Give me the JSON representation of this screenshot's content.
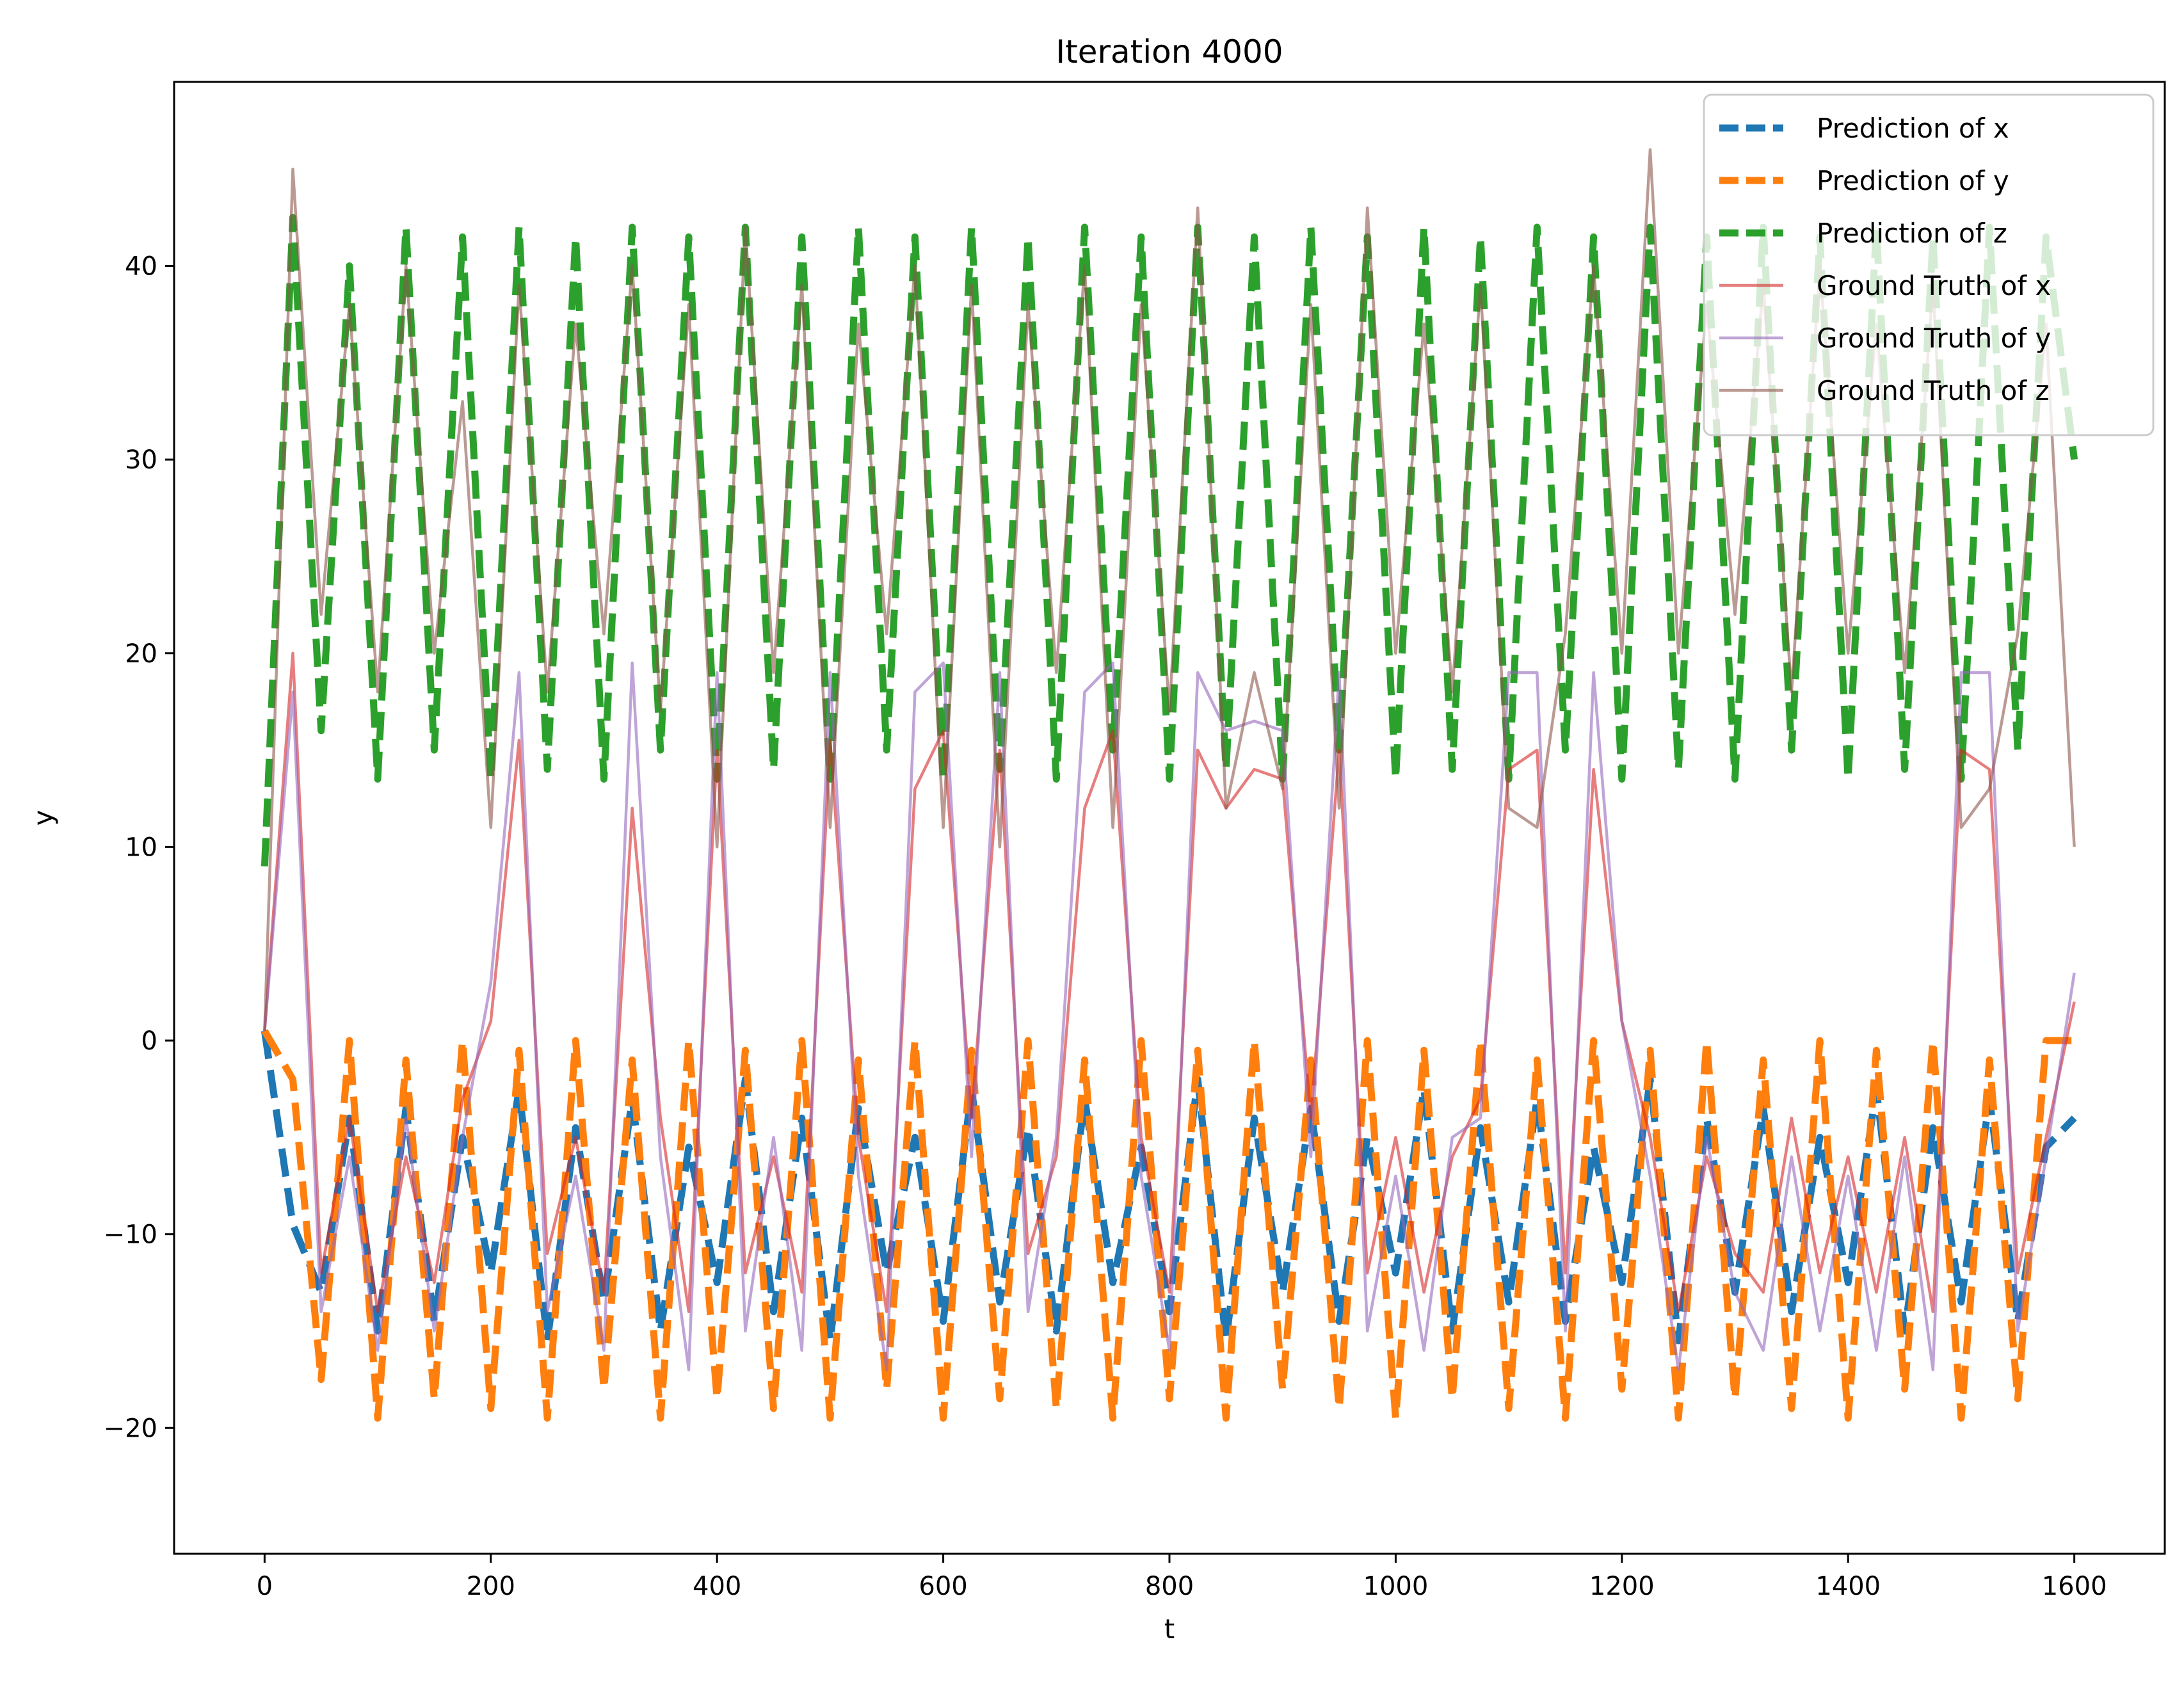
{
  "chart_data": {
    "type": "line",
    "title": "Iteration 4000",
    "xlabel": "t",
    "ylabel": "y",
    "xlim": [
      -80,
      1680
    ],
    "ylim": [
      -26.5,
      49.5
    ],
    "xticks": [
      0,
      200,
      400,
      600,
      800,
      1000,
      1200,
      1400,
      1600
    ],
    "xtick_labels": [
      "0",
      "200",
      "400",
      "600",
      "800",
      "1000",
      "1200",
      "1400",
      "1600"
    ],
    "yticks": [
      -20,
      -10,
      0,
      10,
      20,
      30,
      40
    ],
    "ytick_labels": [
      "−20",
      "−10",
      "0",
      "10",
      "20",
      "30",
      "40"
    ],
    "grid": false,
    "legend_position": "top-right",
    "x": [
      0,
      25,
      50,
      75,
      100,
      125,
      150,
      175,
      200,
      225,
      250,
      275,
      300,
      325,
      350,
      375,
      400,
      425,
      450,
      475,
      500,
      525,
      550,
      575,
      600,
      625,
      650,
      675,
      700,
      725,
      750,
      775,
      800,
      825,
      850,
      875,
      900,
      925,
      950,
      975,
      1000,
      1025,
      1050,
      1075,
      1100,
      1125,
      1150,
      1175,
      1200,
      1225,
      1250,
      1275,
      1300,
      1325,
      1350,
      1375,
      1400,
      1425,
      1450,
      1475,
      1500,
      1525,
      1550,
      1575,
      1600
    ],
    "series": [
      {
        "name": "Prediction of x",
        "style": "dashed",
        "color": "#1f77b4",
        "values": [
          0.5,
          -9.5,
          -13.0,
          -4.0,
          -15.0,
          -3.5,
          -14.5,
          -5.0,
          -12.0,
          -2.5,
          -15.5,
          -4.5,
          -13.5,
          -3.0,
          -15.0,
          -5.5,
          -12.5,
          -2.0,
          -14.0,
          -4.0,
          -15.5,
          -3.5,
          -12.0,
          -5.0,
          -14.5,
          -2.5,
          -13.5,
          -4.5,
          -15.0,
          -3.0,
          -12.5,
          -5.5,
          -14.0,
          -2.0,
          -15.5,
          -4.0,
          -13.0,
          -3.5,
          -14.5,
          -5.0,
          -12.0,
          -2.5,
          -15.0,
          -4.5,
          -13.5,
          -3.0,
          -14.5,
          -5.5,
          -12.5,
          -2.0,
          -15.5,
          -4.0,
          -13.0,
          -3.5,
          -14.0,
          -5.0,
          -12.5,
          -2.5,
          -15.0,
          -4.5,
          -13.5,
          -3.0,
          -14.5,
          -5.5,
          -4.0
        ]
      },
      {
        "name": "Prediction of y",
        "style": "dashed",
        "color": "#ff7f0e",
        "values": [
          0.5,
          -2.0,
          -17.5,
          0.0,
          -19.5,
          -1.0,
          -18.5,
          0.0,
          -19.0,
          -0.5,
          -19.5,
          0.0,
          -18.0,
          -1.0,
          -19.5,
          0.0,
          -18.5,
          -0.5,
          -19.0,
          0.0,
          -19.5,
          -1.0,
          -18.0,
          0.0,
          -19.5,
          -0.5,
          -18.5,
          0.0,
          -19.0,
          -1.0,
          -19.5,
          0.0,
          -18.5,
          -0.5,
          -19.5,
          0.0,
          -18.0,
          -1.0,
          -19.0,
          0.0,
          -19.5,
          -0.5,
          -18.5,
          0.0,
          -19.0,
          -1.0,
          -19.5,
          0.0,
          -18.0,
          -0.5,
          -19.5,
          0.0,
          -18.5,
          -1.0,
          -19.0,
          0.0,
          -19.5,
          -0.5,
          -18.0,
          0.0,
          -19.5,
          -1.0,
          -18.5,
          0.0,
          0.0
        ]
      },
      {
        "name": "Prediction of z",
        "style": "dashed",
        "color": "#2ca02c",
        "values": [
          9.0,
          42.5,
          16.0,
          40.0,
          13.5,
          42.0,
          15.0,
          41.5,
          13.5,
          42.0,
          14.0,
          41.5,
          13.5,
          42.0,
          15.0,
          41.5,
          13.5,
          42.0,
          14.0,
          41.5,
          13.5,
          42.0,
          15.0,
          41.5,
          13.5,
          42.0,
          14.0,
          41.5,
          13.5,
          42.0,
          15.0,
          41.5,
          13.5,
          42.0,
          14.0,
          41.5,
          13.5,
          42.0,
          15.0,
          41.5,
          13.5,
          42.0,
          14.0,
          41.5,
          13.5,
          42.0,
          15.0,
          41.5,
          13.5,
          42.0,
          14.0,
          41.5,
          13.5,
          42.0,
          15.0,
          41.5,
          13.5,
          42.0,
          14.0,
          41.5,
          13.5,
          42.0,
          15.0,
          41.5,
          30.0
        ]
      },
      {
        "name": "Ground Truth of x",
        "style": "solid",
        "color": "#d62728",
        "values": [
          0.5,
          20.0,
          -12.0,
          -4.0,
          -14.0,
          -6.0,
          -12.5,
          -3.0,
          1.0,
          15.5,
          -11.0,
          -5.0,
          -13.0,
          12.0,
          -4.0,
          -14.0,
          15.0,
          -12.0,
          -6.0,
          -13.0,
          15.5,
          -5.0,
          -14.0,
          13.0,
          16.0,
          -4.0,
          15.0,
          -11.0,
          -6.0,
          12.0,
          16.0,
          -5.0,
          -13.0,
          15.0,
          12.0,
          14.0,
          13.5,
          -4.0,
          15.0,
          -12.0,
          -5.0,
          -13.0,
          -6.0,
          -3.0,
          14.0,
          15.0,
          -12.0,
          14.0,
          1.0,
          -5.0,
          -14.0,
          -6.0,
          -11.0,
          -13.0,
          -4.0,
          -12.0,
          -6.0,
          -13.0,
          -5.0,
          -14.0,
          15.0,
          14.0,
          -12.0,
          -5.0,
          2.0
        ]
      },
      {
        "name": "Ground Truth of y",
        "style": "solid",
        "color": "#9467bd",
        "values": [
          0.5,
          18.0,
          -14.0,
          -6.0,
          -16.0,
          -4.0,
          -15.0,
          -5.0,
          3.0,
          19.0,
          -14.0,
          -7.0,
          -16.0,
          19.5,
          -6.0,
          -17.0,
          19.0,
          -15.0,
          -5.0,
          -16.0,
          19.0,
          -7.0,
          -17.0,
          18.0,
          19.5,
          -6.0,
          19.0,
          -14.0,
          -5.0,
          18.0,
          19.5,
          -7.0,
          -16.0,
          19.0,
          16.0,
          16.5,
          16.0,
          -6.0,
          19.0,
          -15.0,
          -7.0,
          -16.0,
          -5.0,
          -4.0,
          19.0,
          19.0,
          -15.0,
          19.0,
          1.0,
          -7.0,
          -17.0,
          -5.0,
          -13.0,
          -16.0,
          -6.0,
          -15.0,
          -7.0,
          -16.0,
          -6.0,
          -17.0,
          19.0,
          19.0,
          -15.0,
          -6.0,
          3.5
        ]
      },
      {
        "name": "Ground Truth of z",
        "style": "solid",
        "color": "#8c564b",
        "values": [
          0.5,
          45.0,
          22.0,
          38.0,
          18.0,
          40.0,
          20.0,
          33.0,
          11.0,
          39.0,
          18.0,
          37.0,
          21.0,
          40.0,
          17.0,
          38.0,
          10.0,
          42.0,
          19.0,
          39.0,
          11.0,
          37.0,
          21.0,
          40.0,
          11.0,
          39.0,
          10.0,
          38.0,
          19.0,
          40.0,
          11.0,
          38.0,
          17.0,
          43.0,
          12.0,
          19.0,
          13.0,
          38.0,
          12.0,
          43.0,
          20.0,
          37.0,
          18.0,
          39.0,
          12.0,
          11.0,
          21.0,
          40.0,
          20.0,
          46.0,
          20.0,
          38.0,
          22.0,
          39.0,
          18.0,
          40.0,
          20.0,
          37.0,
          19.0,
          39.0,
          11.0,
          13.0,
          21.0,
          37.0,
          10.0
        ]
      }
    ]
  }
}
